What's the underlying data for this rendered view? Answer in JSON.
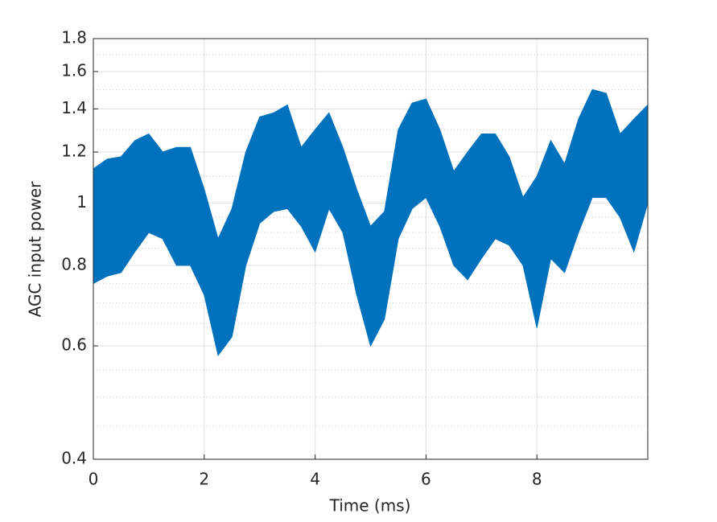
{
  "chart_data": {
    "type": "band",
    "xlabel": "Time (ms)",
    "ylabel": "AGC input power",
    "x": [
      0,
      0.25,
      0.5,
      0.75,
      1,
      1.25,
      1.5,
      1.75,
      2,
      2.25,
      2.5,
      2.75,
      3,
      3.25,
      3.5,
      3.75,
      4,
      4.25,
      4.5,
      4.75,
      5,
      5.25,
      5.5,
      5.75,
      6,
      6.25,
      6.5,
      6.75,
      7,
      7.25,
      7.5,
      7.75,
      8,
      8.25,
      8.5,
      8.75,
      9,
      9.25,
      9.5,
      9.75,
      10
    ],
    "series": [
      {
        "color": "#0072bd",
        "upper": [
          1.13,
          1.17,
          1.18,
          1.25,
          1.28,
          1.2,
          1.22,
          1.22,
          1.05,
          0.88,
          0.98,
          1.2,
          1.36,
          1.38,
          1.42,
          1.22,
          1.3,
          1.38,
          1.22,
          1.05,
          0.92,
          0.97,
          1.3,
          1.43,
          1.45,
          1.3,
          1.12,
          1.2,
          1.28,
          1.28,
          1.18,
          1.02,
          1.1,
          1.25,
          1.15,
          1.35,
          1.5,
          1.48,
          1.28,
          1.35,
          1.42
        ],
        "lower": [
          0.75,
          0.77,
          0.78,
          0.84,
          0.9,
          0.88,
          0.8,
          0.8,
          0.72,
          0.58,
          0.62,
          0.8,
          0.93,
          0.97,
          0.98,
          0.92,
          0.84,
          0.98,
          0.9,
          0.72,
          0.6,
          0.66,
          0.88,
          0.98,
          1.02,
          0.92,
          0.8,
          0.76,
          0.82,
          0.88,
          0.86,
          0.8,
          0.64,
          0.82,
          0.78,
          0.9,
          1.02,
          1.02,
          0.95,
          0.84,
          1.0
        ]
      }
    ],
    "xlim": [
      0,
      10
    ],
    "xticks": [
      0,
      2,
      4,
      6,
      8
    ],
    "ylim": [
      0.4,
      1.8
    ],
    "yticks": [
      0.4,
      0.6,
      0.8,
      1,
      1.2,
      1.4,
      1.6,
      1.8
    ],
    "yminorticks": [
      0.45,
      0.5,
      0.55,
      0.65,
      0.7,
      0.75,
      0.85,
      0.9,
      0.95,
      1.1,
      1.3,
      1.5,
      1.7
    ],
    "ylog": true,
    "grid": true,
    "minor_grid": true
  }
}
